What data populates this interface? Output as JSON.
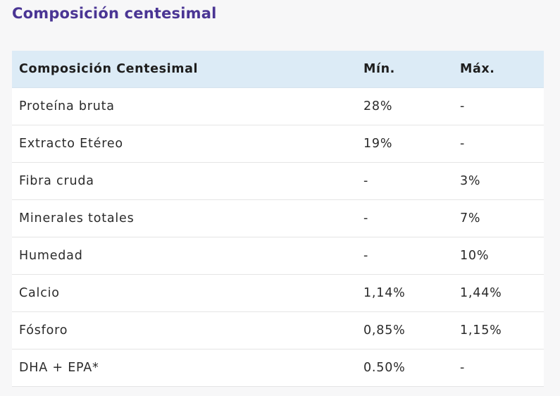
{
  "page": {
    "title": "Composición centesimal"
  },
  "table": {
    "headers": [
      "Composición Centesimal",
      "Mín.",
      "Máx."
    ],
    "rows": [
      [
        "Proteína bruta",
        "28%",
        "-"
      ],
      [
        "Extracto Etéreo",
        "19%",
        "-"
      ],
      [
        "Fibra cruda",
        "-",
        "3%"
      ],
      [
        "Minerales totales",
        "-",
        "7%"
      ],
      [
        "Humedad",
        "-",
        "10%"
      ],
      [
        "Calcio",
        "1,14%",
        "1,44%"
      ],
      [
        "Fósforo",
        "0,85%",
        "1,15%"
      ],
      [
        "DHA + EPA*",
        "0.50%",
        "-"
      ]
    ]
  }
}
